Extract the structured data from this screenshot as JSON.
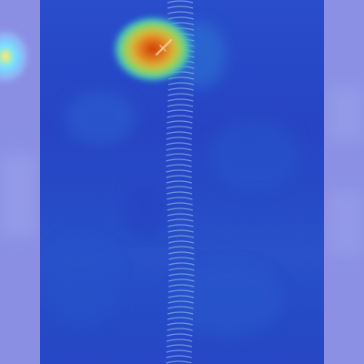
{
  "image": {
    "subject": "heatmap-overlay-on-zipper",
    "colormap": [
      "#1f35c9",
      "#2b56d8",
      "#2c8fd4",
      "#37c5c0",
      "#a8d84a",
      "#e7a21c",
      "#d94f10"
    ],
    "overlay_colors": {
      "background_lavender": "#8f93e6",
      "side_panel_blue": "#7f84e2",
      "fabric_blue": "#2748cc",
      "fabric_deep": "#1f35c9",
      "hotspot_core": "#d94f10",
      "hotspot_ring": "#a8d84a",
      "left_edge_glow": "#f2f06a"
    }
  }
}
